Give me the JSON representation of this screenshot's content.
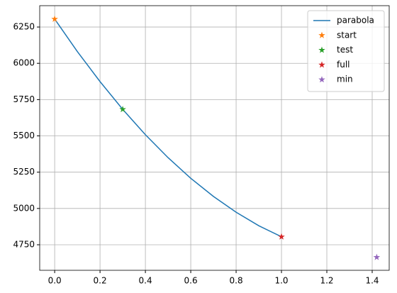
{
  "chart_data": {
    "type": "line",
    "series": [
      {
        "name": "parabola",
        "color": "#1f77b4",
        "style": "line",
        "x": [
          0,
          0.1,
          0.2,
          0.3,
          0.4,
          0.5,
          0.6,
          0.7,
          0.8,
          0.9,
          1.0
        ],
        "values": [
          6305,
          6081,
          5874,
          5683,
          5508,
          5350,
          5208,
          5083,
          4974,
          4881,
          4805
        ]
      },
      {
        "name": "start",
        "color": "#ff7f0e",
        "style": "marker",
        "x": [
          0
        ],
        "values": [
          6305
        ]
      },
      {
        "name": "test",
        "color": "#2ca02c",
        "style": "marker",
        "x": [
          0.3
        ],
        "values": [
          5683
        ]
      },
      {
        "name": "full",
        "color": "#d62728",
        "style": "marker",
        "x": [
          1.0
        ],
        "values": [
          4805
        ]
      },
      {
        "name": "min",
        "color": "#9467bd",
        "style": "marker",
        "x": [
          1.42
        ],
        "values": [
          4664
        ]
      }
    ],
    "xlim": [
      -0.066,
      1.475
    ],
    "ylim": [
      4574,
      6397
    ],
    "xticks": [
      {
        "value": 0,
        "label": "0.0"
      },
      0.2,
      0.4,
      0.6,
      0.8,
      {
        "value": 1,
        "label": "1.0"
      },
      1.2,
      1.4
    ],
    "yticks": [
      4750,
      5000,
      5250,
      5500,
      5750,
      6000,
      6250
    ],
    "grid": true,
    "legend": "upper right"
  }
}
